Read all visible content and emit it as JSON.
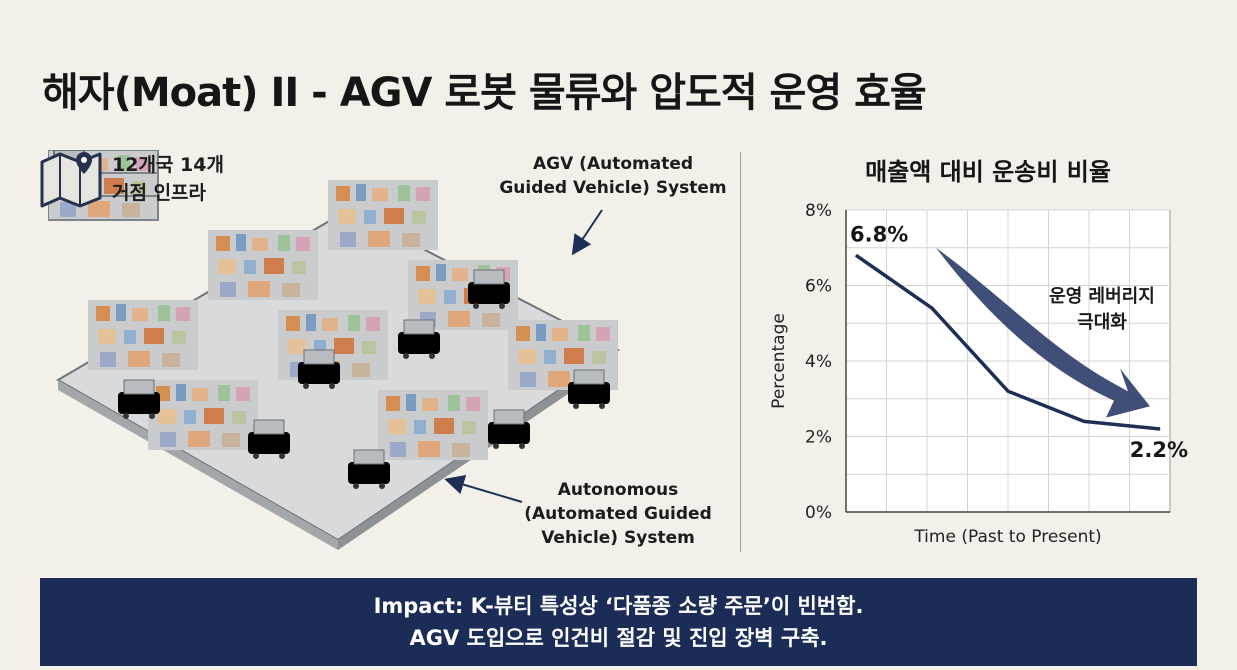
{
  "title": "해자(Moat) II - AGV 로봇 물류와 압도적 운영 효율",
  "left_panel": {
    "map_badge": {
      "icon": "map-pin-icon",
      "text": "12개국 14개\n거점 인프라"
    },
    "callout_agv": "AGV (Automated\nGuided Vehicle) System",
    "callout_autonomous": "Autonomous\n(Automated Guided\nVehicle) System",
    "colors": {
      "robot": "#e8762c",
      "shelf": "#8e949b",
      "floor": "#d9dadb"
    }
  },
  "chart_data": {
    "type": "line",
    "title": "매출액 대비 운송비 비율",
    "xlabel": "Time (Past to Present)",
    "ylabel": "Percentage",
    "ylim": [
      0,
      8
    ],
    "yticks": [
      "0%",
      "2%",
      "4%",
      "6%",
      "8%"
    ],
    "grid": true,
    "series": [
      {
        "values": [
          6.8,
          5.4,
          3.2,
          2.4,
          2.2
        ]
      }
    ],
    "start_label": "6.8%",
    "end_label": "2.2%",
    "annotation": "운영 레버리지\n극대화",
    "line_color": "#1e2f55"
  },
  "banner": {
    "line1": "Impact: K-뷰티 특성상 ‘다품종 소량 주문’이 빈번함.",
    "line2": "AGV 도입으로 인건비 절감 및 진입 장벽 구축.",
    "background": "#1b2d56"
  }
}
